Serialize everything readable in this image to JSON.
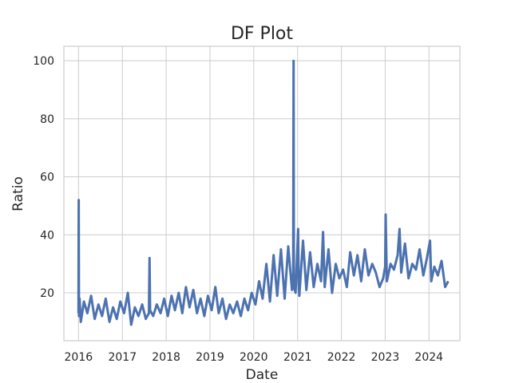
{
  "chart_data": {
    "type": "line",
    "title": "DF Plot",
    "xlabel": "Date",
    "ylabel": "Ratio",
    "x_ticks": [
      "2016",
      "2017",
      "2018",
      "2019",
      "2020",
      "2021",
      "2022",
      "2023",
      "2024"
    ],
    "y_ticks": [
      20,
      40,
      60,
      80,
      100
    ],
    "xlim": [
      "2015-09-01",
      "2024-09-15"
    ],
    "ylim": [
      3.5,
      105
    ],
    "grid": true,
    "series_color": "#4c72b0",
    "series": [
      {
        "x": [
          "2016-01-01",
          "2016-01-03",
          "2016-01-05",
          "2016-01-10",
          "2016-01-20",
          "2016-02-15",
          "2016-03-15",
          "2016-04-15",
          "2016-05-15",
          "2016-06-15",
          "2016-07-15",
          "2016-08-15",
          "2016-09-15",
          "2016-10-15",
          "2016-11-15",
          "2016-12-15",
          "2017-01-15",
          "2017-02-15",
          "2017-03-15",
          "2017-04-15",
          "2017-05-15",
          "2017-06-15",
          "2017-07-15",
          "2017-08-10",
          "2017-08-15",
          "2017-08-20",
          "2017-09-15",
          "2017-10-15",
          "2017-11-15",
          "2017-12-15",
          "2018-01-15",
          "2018-02-15",
          "2018-03-15",
          "2018-04-15",
          "2018-05-15",
          "2018-06-15",
          "2018-07-15",
          "2018-08-15",
          "2018-09-15",
          "2018-10-15",
          "2018-11-15",
          "2018-12-15",
          "2019-01-15",
          "2019-02-15",
          "2019-03-15",
          "2019-04-15",
          "2019-05-15",
          "2019-06-15",
          "2019-07-15",
          "2019-08-15",
          "2019-09-15",
          "2019-10-15",
          "2019-11-15",
          "2019-12-15",
          "2020-01-15",
          "2020-02-15",
          "2020-03-15",
          "2020-04-15",
          "2020-05-15",
          "2020-06-15",
          "2020-07-15",
          "2020-08-15",
          "2020-09-15",
          "2020-10-15",
          "2020-11-15",
          "2020-11-25",
          "2020-11-28",
          "2020-12-01",
          "2020-12-15",
          "2021-01-05",
          "2021-01-10",
          "2021-01-15",
          "2021-02-15",
          "2021-03-15",
          "2021-04-15",
          "2021-05-15",
          "2021-06-15",
          "2021-07-15",
          "2021-08-01",
          "2021-08-15",
          "2021-09-15",
          "2021-10-15",
          "2021-11-15",
          "2021-12-15",
          "2022-01-15",
          "2022-02-15",
          "2022-03-15",
          "2022-04-15",
          "2022-05-15",
          "2022-06-15",
          "2022-07-15",
          "2022-08-15",
          "2022-09-15",
          "2022-10-15",
          "2022-11-15",
          "2022-12-15",
          "2023-01-01",
          "2023-01-05",
          "2023-01-15",
          "2023-02-15",
          "2023-03-15",
          "2023-04-15",
          "2023-05-01",
          "2023-05-15",
          "2023-06-15",
          "2023-07-15",
          "2023-08-15",
          "2023-09-15",
          "2023-10-15",
          "2023-11-15",
          "2023-12-15",
          "2024-01-10",
          "2024-01-20",
          "2024-02-15",
          "2024-03-15",
          "2024-04-15",
          "2024-05-15",
          "2024-06-10"
        ],
        "values": [
          13,
          52,
          12,
          18,
          10,
          17,
          13,
          19,
          11,
          16,
          12,
          18,
          10,
          15,
          11,
          17,
          13,
          20,
          9,
          15,
          12,
          16,
          11,
          13,
          32,
          14,
          12,
          16,
          13,
          18,
          12,
          19,
          14,
          20,
          13,
          22,
          15,
          21,
          13,
          18,
          12,
          19,
          14,
          22,
          13,
          18,
          11,
          16,
          13,
          17,
          12,
          18,
          14,
          20,
          16,
          24,
          18,
          30,
          17,
          33,
          19,
          35,
          18,
          36,
          21,
          27,
          100,
          22,
          20,
          42,
          23,
          19,
          38,
          21,
          34,
          22,
          30,
          24,
          41,
          22,
          35,
          20,
          30,
          25,
          28,
          22,
          34,
          26,
          33,
          24,
          35,
          26,
          30,
          27,
          22,
          25,
          29,
          47,
          24,
          30,
          28,
          33,
          42,
          27,
          37,
          25,
          30,
          28,
          35,
          26,
          32,
          38,
          24,
          29,
          26,
          31,
          22,
          24
        ]
      }
    ]
  }
}
